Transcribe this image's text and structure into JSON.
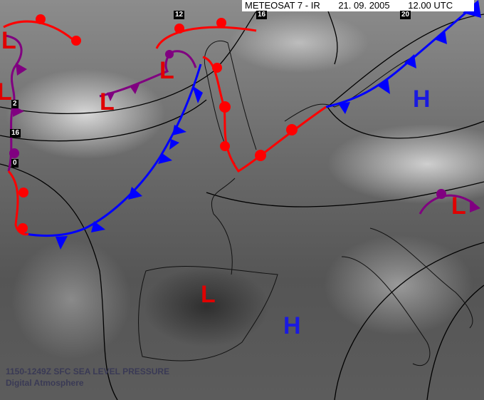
{
  "header": {
    "satellite": "METEOSAT 7 - IR",
    "date": "21. 09. 2005",
    "time": "12.00 UTC"
  },
  "isobar_labels": [
    "12",
    "16",
    "20",
    "2",
    "16",
    "0"
  ],
  "pressure_centers": {
    "low": "L",
    "high": "H"
  },
  "footer": {
    "line1": "1150-1249Z SFC SEA LEVEL PRESSURE",
    "line2": "Digital Atmosphere"
  },
  "colors": {
    "warm_front": "#ff0000",
    "cold_front": "#0000ff",
    "occluded_front": "#800080",
    "low": "#e00000",
    "high": "#1a1ae0",
    "isobar": "#000000"
  }
}
